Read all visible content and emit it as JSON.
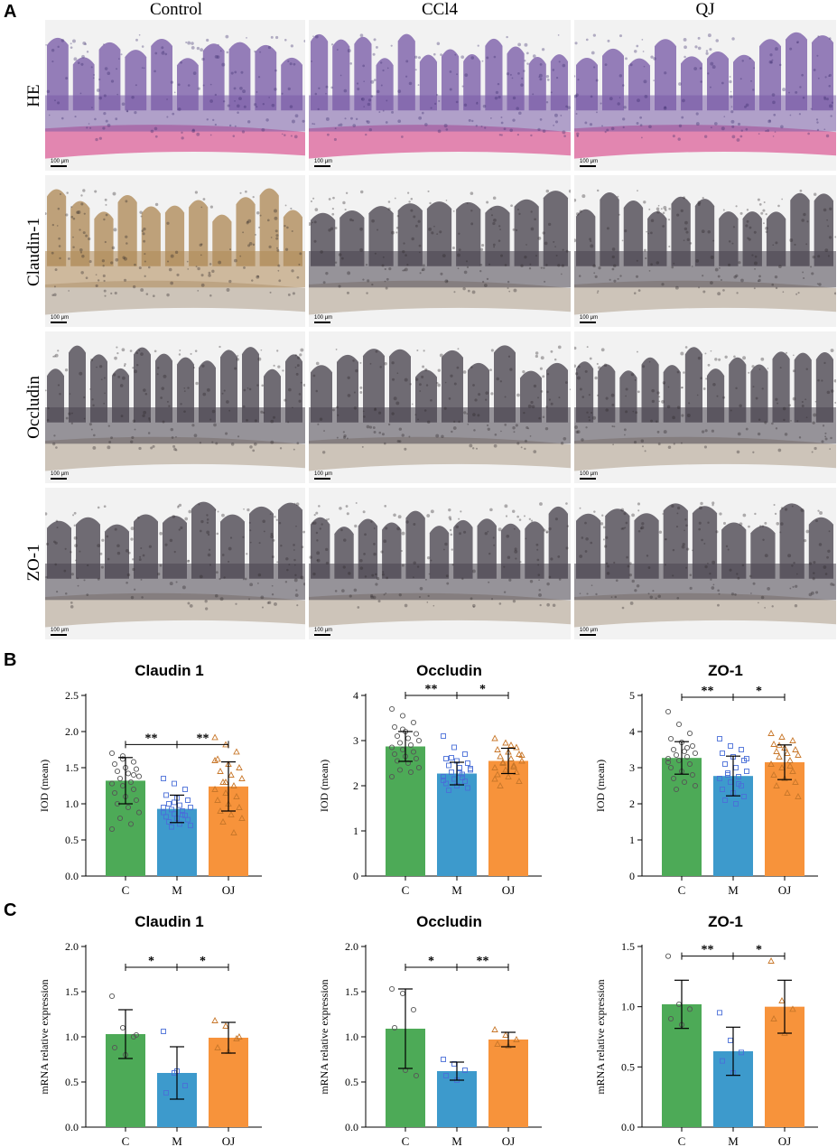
{
  "panels": {
    "A": "A",
    "B": "B",
    "C": "C"
  },
  "histology": {
    "columns": [
      "Control",
      "CCl4",
      "QJ"
    ],
    "rows": [
      "HE",
      "Claudin-1",
      "Occludin",
      "ZO-1"
    ],
    "scale_label": "100 μm",
    "colors": {
      "he_tissue": "#7a5ca8",
      "he_muscle": "#e07aa8",
      "ihc_dark": "#4a4550",
      "ihc_brown": "#b08a58",
      "background": "#f2f2f2"
    }
  },
  "chart_data": [
    {
      "type": "bar",
      "panel": "B",
      "title": "Claudin 1",
      "ylabel": "IOD (mean)",
      "categories": [
        "C",
        "M",
        "QJ"
      ],
      "values": [
        1.32,
        0.93,
        1.24
      ],
      "errors": [
        0.32,
        0.19,
        0.34
      ],
      "ylim": [
        0,
        2.5
      ],
      "yticks": [
        "0.0",
        "0.5",
        "1.0",
        "1.5",
        "2.0",
        "2.5"
      ],
      "ytick_values": [
        0,
        0.5,
        1.0,
        1.5,
        2.0,
        2.5
      ],
      "colors": [
        "#4daa57",
        "#3d9acc",
        "#f7933b"
      ],
      "markers": [
        "circle",
        "square",
        "triangle"
      ],
      "points": [
        [
          1.7,
          1.62,
          1.58,
          1.55,
          1.5,
          1.48,
          1.45,
          1.42,
          1.38,
          1.35,
          1.3,
          1.28,
          1.25,
          1.2,
          1.15,
          1.1,
          1.05,
          1.0,
          0.95,
          0.88,
          0.8,
          0.72,
          0.65,
          1.66,
          1.4
        ],
        [
          1.35,
          1.28,
          1.2,
          1.12,
          1.08,
          1.05,
          1.0,
          0.98,
          0.95,
          0.92,
          0.9,
          0.88,
          0.86,
          0.84,
          0.82,
          0.8,
          0.78,
          0.75,
          0.72,
          0.7,
          0.68,
          0.85,
          0.95,
          1.02
        ],
        [
          1.92,
          1.82,
          1.72,
          1.62,
          1.55,
          1.5,
          1.45,
          1.4,
          1.35,
          1.3,
          1.25,
          1.2,
          1.15,
          1.1,
          1.05,
          1.0,
          0.95,
          0.9,
          0.85,
          0.8,
          0.75,
          0.6,
          1.6,
          1.3
        ]
      ],
      "brackets": [
        {
          "from": 0,
          "to": 1,
          "label": "**",
          "y": 1.82
        },
        {
          "from": 1,
          "to": 2,
          "label": "**",
          "y": 1.82
        }
      ]
    },
    {
      "type": "bar",
      "panel": "B",
      "title": "Occludin",
      "ylabel": "IOD (mean)",
      "categories": [
        "C",
        "M",
        "QJ"
      ],
      "values": [
        2.87,
        2.27,
        2.55
      ],
      "errors": [
        0.33,
        0.25,
        0.28
      ],
      "ylim": [
        0,
        4
      ],
      "yticks": [
        "0",
        "1",
        "2",
        "3",
        "4"
      ],
      "ytick_values": [
        0,
        1,
        2,
        3,
        4
      ],
      "colors": [
        "#4daa57",
        "#3d9acc",
        "#f7933b"
      ],
      "markers": [
        "circle",
        "square",
        "triangle"
      ],
      "points": [
        [
          3.7,
          3.55,
          3.4,
          3.3,
          3.2,
          3.15,
          3.1,
          3.05,
          3.0,
          2.95,
          2.9,
          2.85,
          2.8,
          2.75,
          2.7,
          2.65,
          2.6,
          2.55,
          2.5,
          2.4,
          2.35,
          2.3,
          2.2,
          3.25
        ],
        [
          3.1,
          2.85,
          2.7,
          2.6,
          2.55,
          2.5,
          2.45,
          2.4,
          2.35,
          2.3,
          2.25,
          2.2,
          2.15,
          2.1,
          2.05,
          2.0,
          1.95,
          1.9,
          2.28,
          2.38,
          2.62,
          2.18,
          2.12
        ],
        [
          3.05,
          2.95,
          2.85,
          2.8,
          2.75,
          2.7,
          2.65,
          2.6,
          2.55,
          2.5,
          2.45,
          2.4,
          2.35,
          2.3,
          2.25,
          2.2,
          2.1,
          2.0,
          2.9,
          2.68,
          2.52,
          2.42,
          2.15
        ]
      ],
      "brackets": [
        {
          "from": 0,
          "to": 1,
          "label": "**",
          "y": 4.0
        },
        {
          "from": 1,
          "to": 2,
          "label": "*",
          "y": 4.0
        }
      ]
    },
    {
      "type": "bar",
      "panel": "B",
      "title": "ZO-1",
      "ylabel": "IOD (mean)",
      "categories": [
        "C",
        "M",
        "QJ"
      ],
      "values": [
        3.27,
        2.77,
        3.15
      ],
      "errors": [
        0.45,
        0.55,
        0.48
      ],
      "ylim": [
        0,
        5
      ],
      "yticks": [
        "0",
        "1",
        "2",
        "3",
        "4",
        "5"
      ],
      "ytick_values": [
        0,
        1,
        2,
        3,
        4,
        5
      ],
      "colors": [
        "#4daa57",
        "#3d9acc",
        "#f7933b"
      ],
      "markers": [
        "circle",
        "square",
        "triangle"
      ],
      "points": [
        [
          4.55,
          4.2,
          3.95,
          3.8,
          3.7,
          3.6,
          3.5,
          3.45,
          3.4,
          3.35,
          3.3,
          3.25,
          3.2,
          3.1,
          3.0,
          2.9,
          2.8,
          2.7,
          2.6,
          2.5,
          2.4,
          3.55,
          3.15
        ],
        [
          3.8,
          3.6,
          3.5,
          3.4,
          3.3,
          3.2,
          3.1,
          3.0,
          2.9,
          2.8,
          2.75,
          2.7,
          2.6,
          2.5,
          2.4,
          2.3,
          2.2,
          2.1,
          2.0,
          3.25,
          2.85,
          2.55
        ],
        [
          3.95,
          3.85,
          3.75,
          3.65,
          3.55,
          3.5,
          3.45,
          3.4,
          3.35,
          3.3,
          3.2,
          3.1,
          3.0,
          2.9,
          2.8,
          2.7,
          2.6,
          2.5,
          2.3,
          2.2,
          3.62,
          3.05
        ]
      ],
      "brackets": [
        {
          "from": 0,
          "to": 1,
          "label": "**",
          "y": 4.95
        },
        {
          "from": 1,
          "to": 2,
          "label": "*",
          "y": 4.95
        }
      ]
    },
    {
      "type": "bar",
      "panel": "C",
      "title": "Claudin 1",
      "ylabel": "mRNA relative expression",
      "categories": [
        "C",
        "M",
        "QJ"
      ],
      "values": [
        1.03,
        0.6,
        0.99
      ],
      "errors": [
        0.27,
        0.29,
        0.17
      ],
      "ylim": [
        0,
        2.0
      ],
      "yticks": [
        "0.0",
        "0.5",
        "1.0",
        "1.5",
        "2.0"
      ],
      "ytick_values": [
        0,
        0.5,
        1.0,
        1.5,
        2.0
      ],
      "colors": [
        "#4daa57",
        "#3d9acc",
        "#f7933b"
      ],
      "markers": [
        "circle",
        "square",
        "triangle"
      ],
      "points": [
        [
          1.45,
          1.1,
          1.0,
          0.88,
          0.8,
          1.02
        ],
        [
          1.06,
          0.6,
          0.46,
          0.38,
          0.62
        ],
        [
          1.18,
          1.12,
          0.98,
          0.88,
          0.84,
          1.0
        ]
      ],
      "brackets": [
        {
          "from": 0,
          "to": 1,
          "label": "*",
          "y": 1.77
        },
        {
          "from": 1,
          "to": 2,
          "label": "*",
          "y": 1.77
        }
      ]
    },
    {
      "type": "bar",
      "panel": "C",
      "title": "Occludin",
      "ylabel": "mRNA relative expression",
      "categories": [
        "C",
        "M",
        "QJ"
      ],
      "values": [
        1.09,
        0.62,
        0.97
      ],
      "errors": [
        0.44,
        0.1,
        0.08
      ],
      "ylim": [
        0,
        2.0
      ],
      "yticks": [
        "0.0",
        "0.5",
        "1.0",
        "1.5",
        "2.0"
      ],
      "ytick_values": [
        0,
        0.5,
        1.0,
        1.5,
        2.0
      ],
      "colors": [
        "#4daa57",
        "#3d9acc",
        "#f7933b"
      ],
      "markers": [
        "circle",
        "square",
        "triangle"
      ],
      "points": [
        [
          1.53,
          1.48,
          1.3,
          1.1,
          0.63,
          0.57
        ],
        [
          0.75,
          0.7,
          0.63,
          0.57,
          0.52
        ],
        [
          1.08,
          1.02,
          0.97,
          0.92,
          0.9
        ]
      ],
      "brackets": [
        {
          "from": 0,
          "to": 1,
          "label": "*",
          "y": 1.77
        },
        {
          "from": 1,
          "to": 2,
          "label": "**",
          "y": 1.77
        }
      ]
    },
    {
      "type": "bar",
      "panel": "C",
      "title": "ZO-1",
      "ylabel": "mRNA relative expression",
      "categories": [
        "C",
        "M",
        "QJ"
      ],
      "values": [
        1.02,
        0.63,
        1.0
      ],
      "errors": [
        0.2,
        0.2,
        0.22
      ],
      "ylim": [
        0,
        1.5
      ],
      "yticks": [
        "0.0",
        "0.5",
        "1.0",
        "1.5"
      ],
      "ytick_values": [
        0,
        0.5,
        1.0,
        1.5
      ],
      "colors": [
        "#4daa57",
        "#3d9acc",
        "#f7933b"
      ],
      "markers": [
        "circle",
        "square",
        "triangle"
      ],
      "points": [
        [
          1.42,
          1.02,
          0.98,
          0.9,
          0.85
        ],
        [
          0.95,
          0.72,
          0.62,
          0.55,
          0.45
        ],
        [
          1.38,
          1.05,
          0.98,
          0.9,
          0.78
        ]
      ],
      "brackets": [
        {
          "from": 0,
          "to": 1,
          "label": "**",
          "y": 1.42
        },
        {
          "from": 1,
          "to": 2,
          "label": "*",
          "y": 1.42
        }
      ]
    }
  ]
}
